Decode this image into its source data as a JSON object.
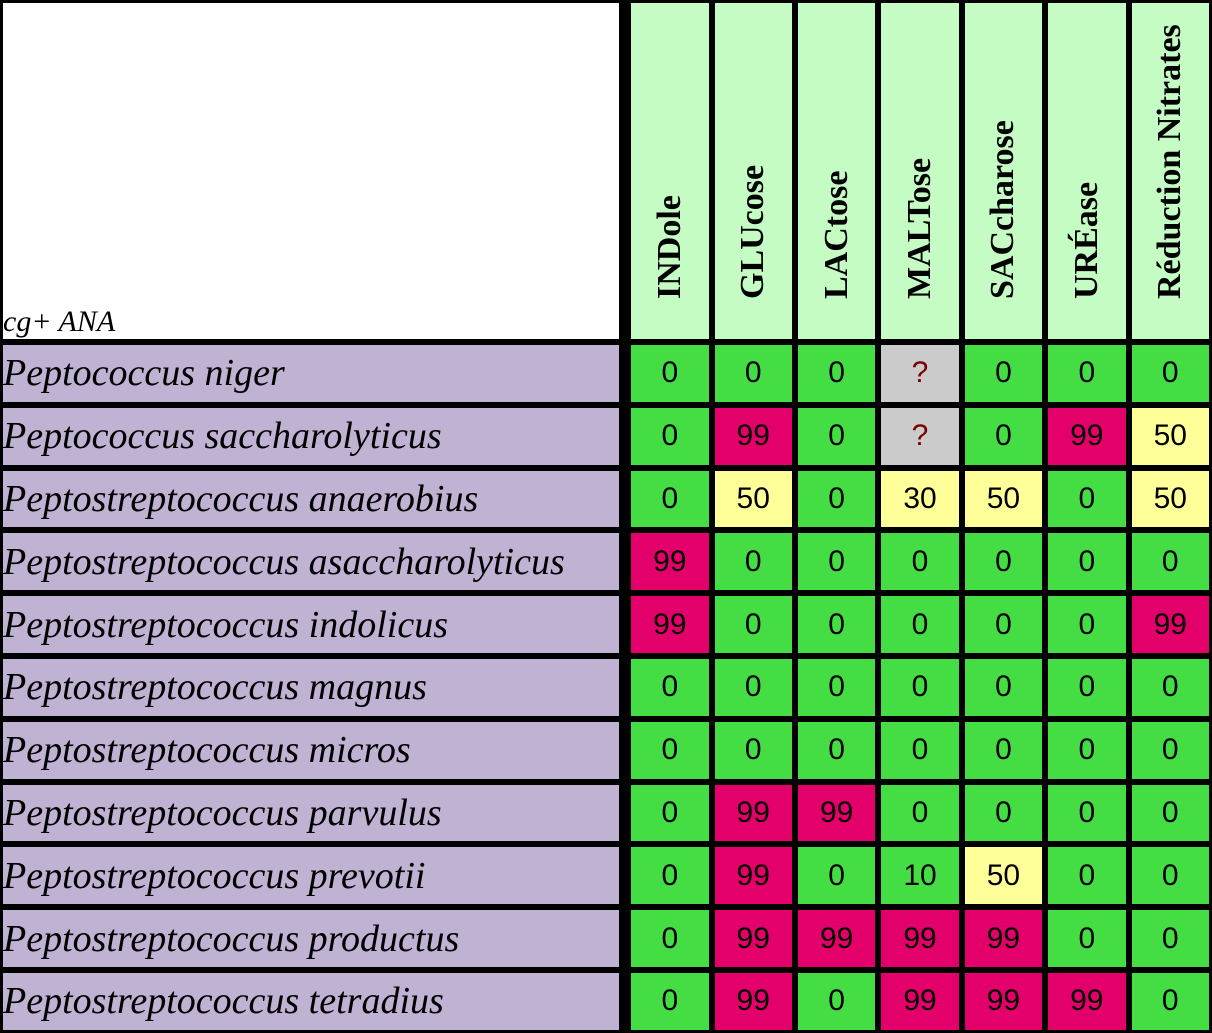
{
  "corner_label": "cg+ ANA",
  "columns": [
    "INDole",
    "GLUcose",
    "LACtose",
    "MALTose",
    "SACcharose",
    "URÉase",
    "Réduction Nitrates"
  ],
  "rows": [
    {
      "species": "Peptococcus niger",
      "values": [
        "0",
        "0",
        "0",
        "?",
        "0",
        "0",
        "0"
      ]
    },
    {
      "species": "Peptococcus saccharolyticus",
      "values": [
        "0",
        "99",
        "0",
        "?",
        "0",
        "99",
        "50"
      ]
    },
    {
      "species": "Peptostreptococcus anaerobius",
      "values": [
        "0",
        "50",
        "0",
        "30",
        "50",
        "0",
        "50"
      ]
    },
    {
      "species": "Peptostreptococcus asaccharolyticus",
      "values": [
        "99",
        "0",
        "0",
        "0",
        "0",
        "0",
        "0"
      ]
    },
    {
      "species": "Peptostreptococcus indolicus",
      "values": [
        "99",
        "0",
        "0",
        "0",
        "0",
        "0",
        "99"
      ]
    },
    {
      "species": "Peptostreptococcus magnus",
      "values": [
        "0",
        "0",
        "0",
        "0",
        "0",
        "0",
        "0"
      ]
    },
    {
      "species": "Peptostreptococcus micros",
      "values": [
        "0",
        "0",
        "0",
        "0",
        "0",
        "0",
        "0"
      ]
    },
    {
      "species": "Peptostreptococcus parvulus",
      "values": [
        "0",
        "99",
        "99",
        "0",
        "0",
        "0",
        "0"
      ]
    },
    {
      "species": "Peptostreptococcus prevotii",
      "values": [
        "0",
        "99",
        "0",
        "10",
        "50",
        "0",
        "0"
      ]
    },
    {
      "species": "Peptostreptococcus productus",
      "values": [
        "0",
        "99",
        "99",
        "99",
        "99",
        "0",
        "0"
      ]
    },
    {
      "species": "Peptostreptococcus tetradius",
      "values": [
        "0",
        "99",
        "0",
        "99",
        "99",
        "99",
        "0"
      ]
    }
  ],
  "colors": {
    "negative": "#44dd44",
    "positive": "#e4006a",
    "variable": "#ffff99",
    "unknown": "#cbcbcb",
    "header": "#c4fcc4",
    "species": "#c0b2d3"
  }
}
